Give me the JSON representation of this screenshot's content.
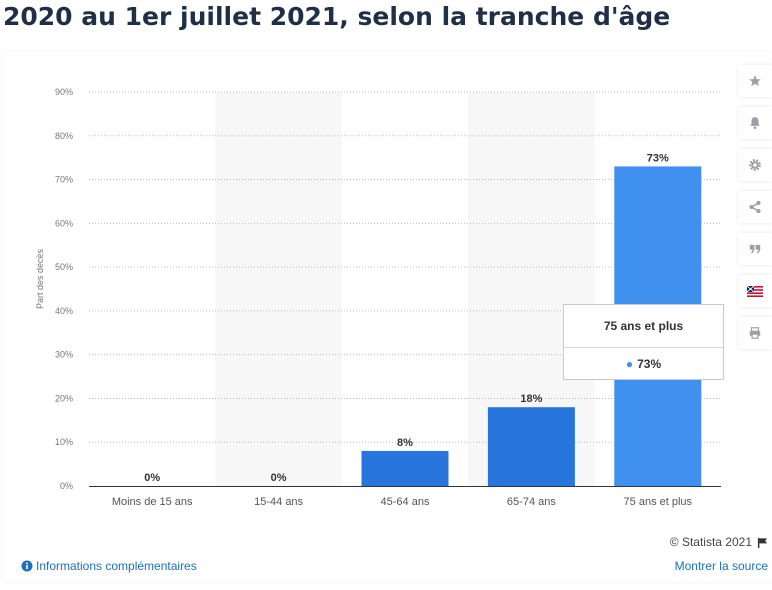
{
  "title": "2020 au 1er juillet 2021, selon la tranche d'âge",
  "chart_data": {
    "type": "bar",
    "categories": [
      "Moins de 15 ans",
      "15-44 ans",
      "45-64 ans",
      "65-74 ans",
      "75 ans et plus"
    ],
    "values": [
      0,
      0,
      8,
      18,
      73
    ],
    "value_labels": [
      "0%",
      "0%",
      "8%",
      "18%",
      "73%"
    ],
    "ylabel": "Part des décès",
    "ylim": [
      0,
      90
    ],
    "y_ticks": [
      0,
      10,
      20,
      30,
      40,
      50,
      60,
      70,
      80,
      90
    ],
    "y_tick_labels": [
      "0%",
      "10%",
      "20%",
      "30%",
      "40%",
      "50%",
      "60%",
      "70%",
      "80%",
      "90%"
    ],
    "grid": true,
    "bar_color": "#2876dd",
    "highlight_color": "#4090f0",
    "highlight_index": 4
  },
  "tooltip": {
    "title": "75 ans et plus",
    "value": "73%"
  },
  "toolbar": {
    "items": [
      {
        "name": "favorite",
        "icon": "star-icon"
      },
      {
        "name": "notification",
        "icon": "bell-icon"
      },
      {
        "name": "settings",
        "icon": "gear-icon"
      },
      {
        "name": "share",
        "icon": "share-icon"
      },
      {
        "name": "cite",
        "icon": "quote-icon"
      },
      {
        "name": "language",
        "icon": "flag-icon"
      },
      {
        "name": "print",
        "icon": "print-icon"
      }
    ]
  },
  "footer": {
    "credit": "© Statista 2021",
    "more_info": "Informations complémentaires",
    "show_source": "Montrer la source"
  }
}
